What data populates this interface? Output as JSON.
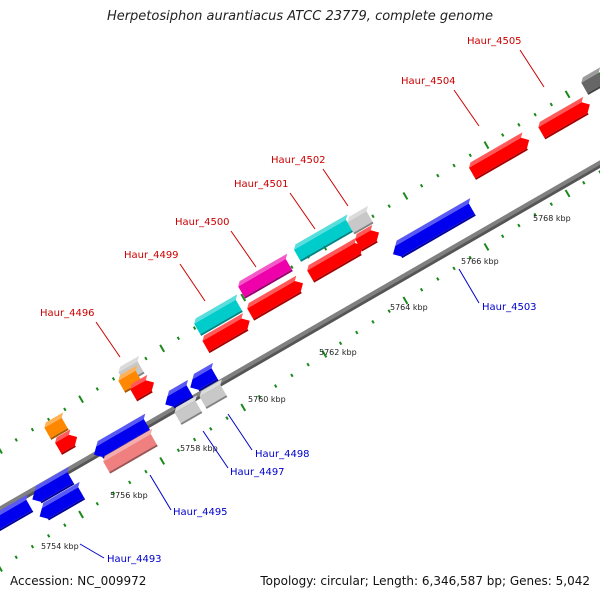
{
  "title": "Herpetosiphon aurantiacus ATCC 23779, complete genome",
  "accession_text": "Accession: NC_009972",
  "summary_text": "Topology: circular; Length: 6,346,587 bp; Genes: 5,042",
  "colors": {
    "backbone": "#808080",
    "tick": "#1a8a1a",
    "forward_label": "#cc0000",
    "reverse_label": "#0000cc",
    "red": "#ff0000",
    "blue": "#0000ee",
    "cyan": "#00cccc",
    "magenta": "#ee00aa",
    "orange": "#ff8800",
    "light_gray": "#c8c8c8",
    "dark_gray": "#666666",
    "pink": "#f08080"
  },
  "ticks": [
    {
      "label": "5754 kbp"
    },
    {
      "label": "5756 kbp"
    },
    {
      "label": "5758 kbp"
    },
    {
      "label": "5760 kbp"
    },
    {
      "label": "5762 kbp"
    },
    {
      "label": "5764 kbp"
    },
    {
      "label": "5766 kbp"
    },
    {
      "label": "5768 kbp"
    }
  ],
  "gene_labels": [
    {
      "name": "Haur_4493",
      "strand": "reverse"
    },
    {
      "name": "Haur_4495",
      "strand": "reverse"
    },
    {
      "name": "Haur_4496",
      "strand": "forward"
    },
    {
      "name": "Haur_4497",
      "strand": "reverse"
    },
    {
      "name": "Haur_4498",
      "strand": "reverse"
    },
    {
      "name": "Haur_4499",
      "strand": "forward"
    },
    {
      "name": "Haur_4500",
      "strand": "forward"
    },
    {
      "name": "Haur_4501",
      "strand": "forward"
    },
    {
      "name": "Haur_4502",
      "strand": "forward"
    },
    {
      "name": "Haur_4503",
      "strand": "reverse"
    },
    {
      "name": "Haur_4504",
      "strand": "forward"
    },
    {
      "name": "Haur_4505",
      "strand": "forward"
    }
  ]
}
